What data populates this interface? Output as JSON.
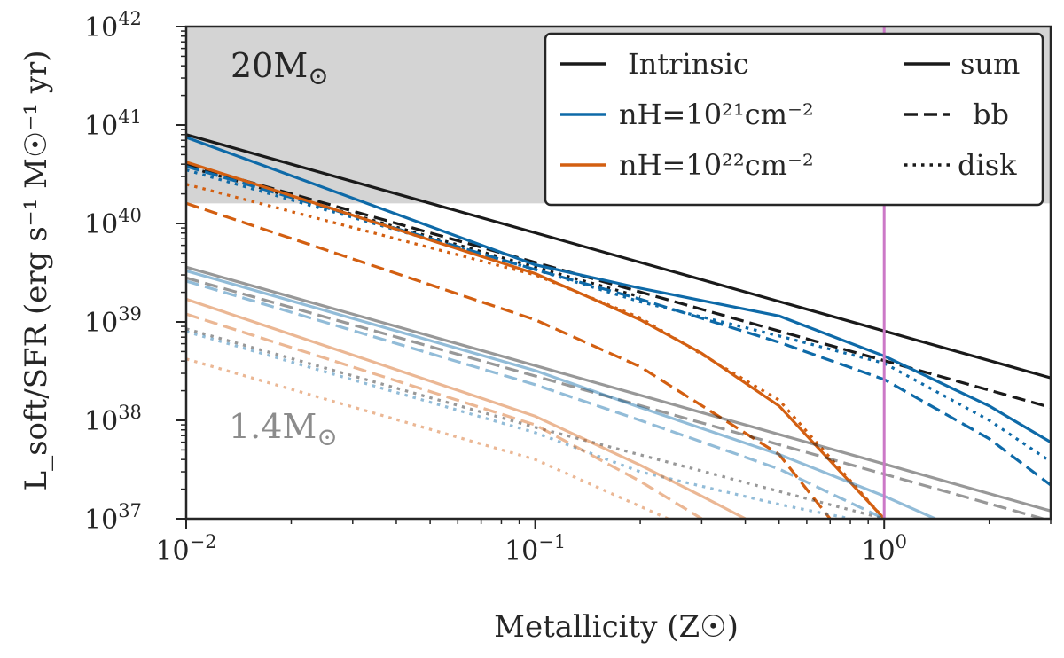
{
  "chart_data": {
    "type": "line",
    "title": "",
    "xlabel": "Metallicity (Z☉)",
    "ylabel": "L_soft/SFR (erg s⁻¹ M☉⁻¹ yr)",
    "xscale": "log",
    "yscale": "log",
    "xlim": [
      0.01,
      3.0
    ],
    "ylim": [
      1e+37,
      1e+42
    ],
    "x_ticks": [
      {
        "value": 0.01,
        "base": "10",
        "exp": "−2"
      },
      {
        "value": 0.1,
        "base": "10",
        "exp": "−1"
      },
      {
        "value": 1,
        "base": "10",
        "exp": "0"
      }
    ],
    "y_ticks": [
      {
        "value": 1e+37,
        "base": "10",
        "exp": "37"
      },
      {
        "value": 1e+38,
        "base": "10",
        "exp": "38"
      },
      {
        "value": 1e+39,
        "base": "10",
        "exp": "39"
      },
      {
        "value": 1e+40,
        "base": "10",
        "exp": "40"
      },
      {
        "value": 1e+41,
        "base": "10",
        "exp": "41"
      },
      {
        "value": 1e+42,
        "base": "10",
        "exp": "42"
      }
    ],
    "shaded_region": {
      "y_from": 1.6e+40,
      "y_to": 1e+42,
      "color": "#d4d4d4"
    },
    "vertical_line": {
      "x": 1.0,
      "color": "#cc79c7"
    },
    "annotations": [
      {
        "text": "20M",
        "sub": "⊙",
        "color": "#404040"
      },
      {
        "text": "1.4M",
        "sub": "⊙",
        "color": "#8c8c8c"
      }
    ],
    "series": [
      {
        "name": "20 Msun Intrinsic sum",
        "color": "#1a1a1a",
        "style": "solid",
        "opacity": 1,
        "x": [
          0.01,
          3.0
        ],
        "y": [
          8e+40,
          2.7e+38
        ]
      },
      {
        "name": "20 Msun Intrinsic bb",
        "color": "#1a1a1a",
        "style": "dashed",
        "opacity": 1,
        "x": [
          0.01,
          3.0
        ],
        "y": [
          4e+40,
          1.35e+38
        ]
      },
      {
        "name": "20 Msun Intrinsic disk",
        "color": "#1a1a1a",
        "style": "dotted",
        "opacity": 1,
        "x": [
          0.01,
          0.1,
          0.2
        ],
        "y": [
          3.8e+40,
          3.6e+39,
          1.8e+39
        ]
      },
      {
        "name": "20 Msun nH=1e21 sum",
        "color": "#0e6aa8",
        "style": "solid",
        "opacity": 1,
        "x": [
          0.01,
          0.1,
          0.2,
          0.5,
          1.0,
          2.0,
          3.0
        ],
        "y": [
          7.5e+40,
          3.8e+39,
          2.2e+39,
          1.15e+39,
          4.5e+38,
          1.4e+38,
          6e+37
        ]
      },
      {
        "name": "20 Msun nH=1e21 bb",
        "color": "#0e6aa8",
        "style": "dashed",
        "opacity": 1,
        "x": [
          0.01,
          0.1,
          0.2,
          0.5,
          1.0,
          2.0,
          3.0
        ],
        "y": [
          3.8e+40,
          3.4e+39,
          1.7e+39,
          6.2e+38,
          2.6e+38,
          6.5e+37,
          2.2e+37
        ]
      },
      {
        "name": "20 Msun nH=1e21 disk",
        "color": "#0e6aa8",
        "style": "dotted",
        "opacity": 1,
        "x": [
          0.01,
          0.1,
          0.2,
          0.5,
          1.0,
          2.0,
          3.0
        ],
        "y": [
          3.5e+40,
          3.4e+39,
          1.6e+39,
          7.2e+38,
          3.8e+38,
          1e+38,
          3.8e+37
        ]
      },
      {
        "name": "20 Msun nH=1e22 sum",
        "color": "#d35f11",
        "style": "solid",
        "opacity": 1,
        "x": [
          0.01,
          0.1,
          0.2,
          0.3,
          0.5,
          1.0
        ],
        "y": [
          4.2e+40,
          3.1e+39,
          1.05e+39,
          4.8e+38,
          1.4e+38,
          1e+37
        ]
      },
      {
        "name": "20 Msun nH=1e22 bb",
        "color": "#d35f11",
        "style": "dashed",
        "opacity": 1,
        "x": [
          0.01,
          0.1,
          0.2,
          0.5,
          0.7
        ],
        "y": [
          1.6e+40,
          1.05e+39,
          3.5e+38,
          4.5e+37,
          1e+37
        ]
      },
      {
        "name": "20 Msun nH=1e22 disk",
        "color": "#d35f11",
        "style": "dotted",
        "opacity": 1,
        "x": [
          0.01,
          0.1,
          0.2,
          0.5,
          1.0
        ],
        "y": [
          2.5e+40,
          3e+39,
          1.1e+39,
          1.6e+38,
          1e+37
        ]
      },
      {
        "name": "1.4 Msun Intrinsic sum",
        "color": "#1a1a1a",
        "style": "solid",
        "opacity": 0.45,
        "x": [
          0.01,
          3.0
        ],
        "y": [
          3.6e+39,
          1.2e+37
        ]
      },
      {
        "name": "1.4 Msun Intrinsic bb",
        "color": "#1a1a1a",
        "style": "dashed",
        "opacity": 0.45,
        "x": [
          0.01,
          3.0
        ],
        "y": [
          2.8e+39,
          9.5e+36
        ]
      },
      {
        "name": "1.4 Msun Intrinsic disk",
        "color": "#1a1a1a",
        "style": "dotted",
        "opacity": 0.45,
        "x": [
          0.01,
          0.1,
          0.5,
          1.0
        ],
        "y": [
          8.5e+38,
          8.5e+37,
          1.9e+37,
          1e+37
        ]
      },
      {
        "name": "1.4 Msun nH=1e21 sum",
        "color": "#0e6aa8",
        "style": "solid",
        "opacity": 0.45,
        "x": [
          0.01,
          0.1,
          0.2,
          0.5,
          1.0,
          1.4
        ],
        "y": [
          3.3e+39,
          3.2e+38,
          1.35e+38,
          4.5e+37,
          1.7e+37,
          1e+37
        ]
      },
      {
        "name": "1.4 Msun nH=1e21 bb",
        "color": "#0e6aa8",
        "style": "dashed",
        "opacity": 0.45,
        "x": [
          0.01,
          0.1,
          0.2,
          0.5,
          1.0
        ],
        "y": [
          2.6e+39,
          2.3e+38,
          1e+38,
          3.2e+37,
          1e+37
        ]
      },
      {
        "name": "1.4 Msun nH=1e21 disk",
        "color": "#0e6aa8",
        "style": "dotted",
        "opacity": 0.45,
        "x": [
          0.01,
          0.1,
          0.2,
          0.5,
          0.8
        ],
        "y": [
          8e+38,
          7.5e+37,
          3e+37,
          1.4e+37,
          1e+37
        ]
      },
      {
        "name": "1.4 Msun nH=1e22 sum",
        "color": "#d35f11",
        "style": "solid",
        "opacity": 0.45,
        "x": [
          0.01,
          0.1,
          0.2,
          0.3,
          0.4
        ],
        "y": [
          1.7e+39,
          1.1e+38,
          3.5e+37,
          1.7e+37,
          1e+37
        ]
      },
      {
        "name": "1.4 Msun nH=1e22 bb",
        "color": "#d35f11",
        "style": "dashed",
        "opacity": 0.45,
        "x": [
          0.01,
          0.1,
          0.2,
          0.3
        ],
        "y": [
          1.2e+39,
          9e+37,
          2.4e+37,
          1e+37
        ]
      },
      {
        "name": "1.4 Msun nH=1e22 disk",
        "color": "#d35f11",
        "style": "dotted",
        "opacity": 0.45,
        "x": [
          0.01,
          0.1,
          0.24
        ],
        "y": [
          4.2e+38,
          4e+37,
          1e+37
        ]
      }
    ],
    "legend": {
      "placement": "top-right",
      "colors": [
        {
          "label": "Intrinsic",
          "color": "#1a1a1a"
        },
        {
          "label": "nH=10²¹cm⁻²",
          "color": "#0e6aa8"
        },
        {
          "label": "nH=10²²cm⁻²",
          "color": "#d35f11"
        }
      ],
      "styles": [
        {
          "label": "sum",
          "style": "solid"
        },
        {
          "label": "bb",
          "style": "dashed"
        },
        {
          "label": "disk",
          "style": "dotted"
        }
      ]
    }
  }
}
